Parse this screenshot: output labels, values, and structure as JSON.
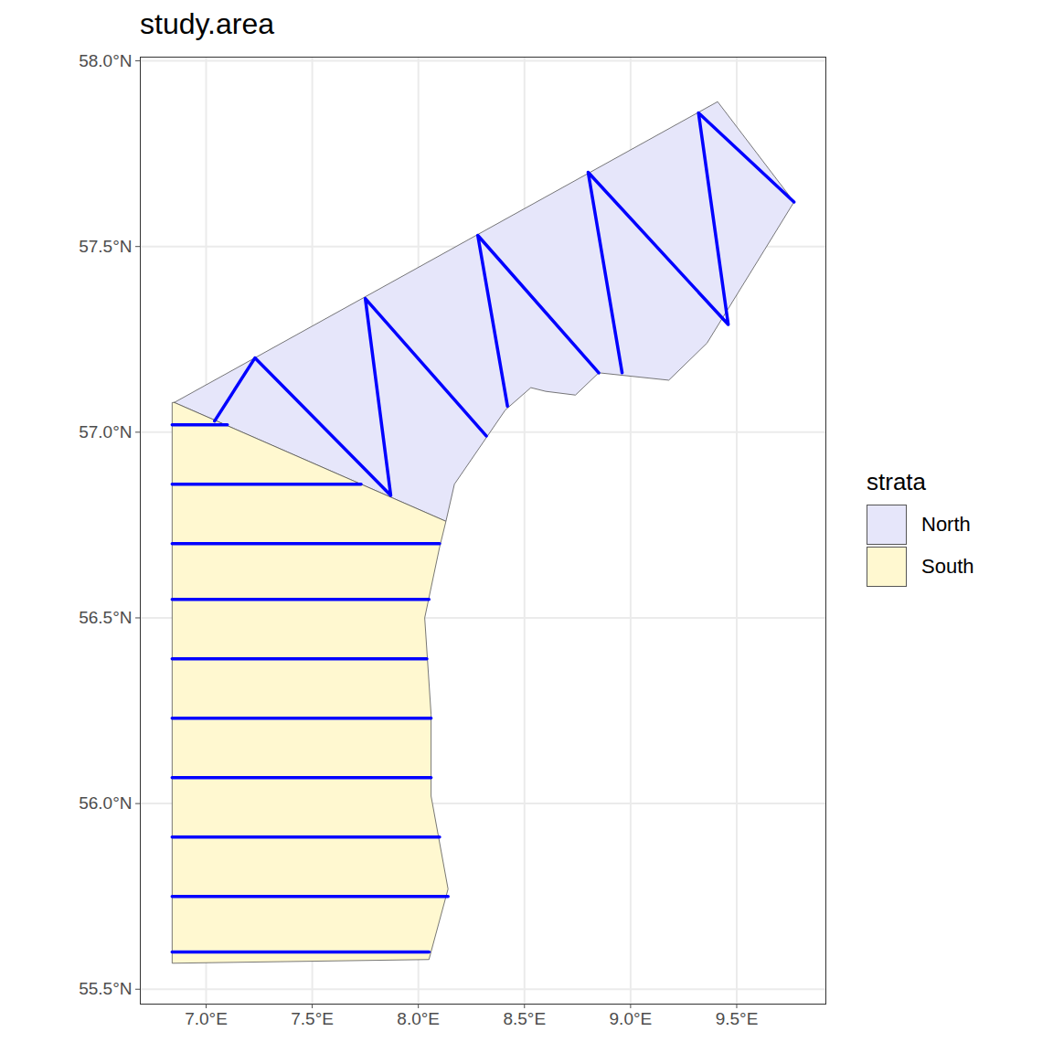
{
  "chart_data": {
    "type": "map",
    "title": "study.area",
    "grid": true,
    "legend": "right",
    "legend_title": "strata",
    "xlim": [
      6.69,
      9.92
    ],
    "ylim": [
      55.46,
      58.01
    ],
    "xticks": [
      {
        "value": 7,
        "label": "7.0°E"
      },
      {
        "value": 7.5,
        "label": "7.5°E"
      },
      {
        "value": 8,
        "label": "8.0°E"
      },
      {
        "value": 8.5,
        "label": "8.5°E"
      },
      {
        "value": 9,
        "label": "9.0°E"
      },
      {
        "value": 9.5,
        "label": "9.5°E"
      }
    ],
    "yticks": [
      {
        "value": 55.5,
        "label": "55.5°N"
      },
      {
        "value": 56,
        "label": "56.0°N"
      },
      {
        "value": 56.5,
        "label": "56.5°N"
      },
      {
        "value": 57,
        "label": "57.0°N"
      },
      {
        "value": 57.5,
        "label": "57.5°N"
      },
      {
        "value": 58,
        "label": "58.0°N"
      }
    ],
    "series": [
      {
        "name": "North",
        "color": "#e6e6fa",
        "polygon": [
          [
            6.85,
            57.08
          ],
          [
            9.41,
            57.89
          ],
          [
            9.77,
            57.62
          ],
          [
            9.63,
            57.49
          ],
          [
            9.36,
            57.24
          ],
          [
            9.18,
            57.14
          ],
          [
            8.85,
            57.16
          ],
          [
            8.74,
            57.1
          ],
          [
            8.6,
            57.11
          ],
          [
            8.53,
            57.12
          ],
          [
            8.41,
            57.06
          ],
          [
            8.17,
            56.86
          ],
          [
            8.13,
            56.76
          ],
          [
            6.85,
            57.08
          ]
        ]
      },
      {
        "name": "South",
        "color": "#fff8d0",
        "polygon": [
          [
            6.85,
            57.08
          ],
          [
            8.13,
            56.76
          ],
          [
            8.1,
            56.69
          ],
          [
            8.03,
            56.5
          ],
          [
            8.06,
            56.24
          ],
          [
            8.06,
            56.02
          ],
          [
            8.14,
            55.77
          ],
          [
            8.05,
            55.58
          ],
          [
            6.84,
            55.57
          ],
          [
            6.84,
            57.08
          ],
          [
            6.85,
            57.08
          ]
        ]
      }
    ],
    "transects": {
      "color": "#0000ff",
      "lines": [
        [
          [
            6.84,
            57.02
          ],
          [
            7.1,
            57.02
          ]
        ],
        [
          [
            6.84,
            56.86
          ],
          [
            7.73,
            56.86
          ]
        ],
        [
          [
            6.84,
            56.7
          ],
          [
            8.1,
            56.7
          ]
        ],
        [
          [
            6.84,
            56.55
          ],
          [
            8.05,
            56.55
          ]
        ],
        [
          [
            6.84,
            56.39
          ],
          [
            8.04,
            56.39
          ]
        ],
        [
          [
            6.84,
            56.23
          ],
          [
            8.06,
            56.23
          ]
        ],
        [
          [
            6.84,
            56.07
          ],
          [
            8.06,
            56.07
          ]
        ],
        [
          [
            6.84,
            55.91
          ],
          [
            8.1,
            55.91
          ]
        ],
        [
          [
            6.84,
            55.75
          ],
          [
            8.14,
            55.75
          ]
        ],
        [
          [
            6.84,
            55.6
          ],
          [
            8.05,
            55.6
          ]
        ],
        [
          [
            7.04,
            57.03
          ],
          [
            7.23,
            57.2
          ],
          [
            7.87,
            56.83
          ],
          [
            7.75,
            57.36
          ],
          [
            8.32,
            56.99
          ]
        ],
        [
          [
            8.42,
            57.07
          ],
          [
            8.28,
            57.53
          ],
          [
            8.85,
            57.16
          ]
        ],
        [
          [
            8.96,
            57.16
          ],
          [
            8.8,
            57.7
          ],
          [
            9.46,
            57.29
          ],
          [
            9.32,
            57.86
          ],
          [
            9.77,
            57.62
          ]
        ]
      ]
    }
  }
}
